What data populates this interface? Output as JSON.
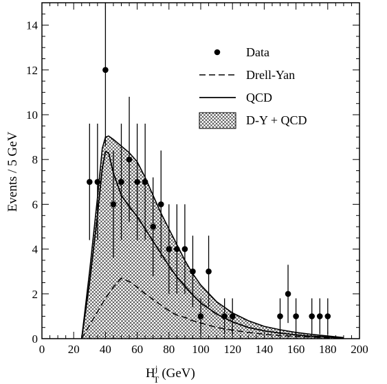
{
  "chart_data": {
    "type": "scatter",
    "xlabel_main": "H",
    "xlabel_sup": "j",
    "xlabel_sub": "T",
    "xlabel_unit": "(GeV)",
    "ylabel": "Events / 5 GeV",
    "xlim": [
      0,
      200
    ],
    "ylim": [
      0,
      15
    ],
    "x_ticks": [
      0,
      20,
      40,
      60,
      80,
      100,
      120,
      140,
      160,
      180,
      200
    ],
    "y_ticks": [
      0,
      2,
      4,
      6,
      8,
      10,
      12,
      14
    ],
    "grid": false,
    "legend_position": "top-right",
    "legend": {
      "data": "Data",
      "drell_yan": "Drell-Yan",
      "qcd": "QCD",
      "dy_qcd": "D-Y + QCD"
    },
    "data_points": {
      "x": [
        30,
        35,
        40,
        45,
        50,
        55,
        60,
        65,
        70,
        75,
        80,
        85,
        90,
        95,
        100,
        105,
        115,
        120,
        150,
        155,
        160,
        170,
        175,
        180
      ],
      "y": [
        7,
        7,
        12,
        6,
        7,
        8,
        7,
        7,
        5,
        6,
        4,
        4,
        4,
        3,
        1,
        3,
        1,
        1,
        1,
        2,
        1,
        1,
        1,
        1
      ],
      "err_low": [
        2.6,
        2.6,
        3.4,
        2.4,
        2.6,
        2.8,
        2.6,
        2.6,
        2.2,
        2.4,
        2.0,
        2.0,
        2.0,
        1.6,
        0.8,
        1.6,
        0.8,
        0.8,
        0.8,
        1.3,
        0.8,
        0.8,
        0.8,
        0.8
      ],
      "err_high": [
        2.6,
        2.6,
        3.4,
        2.4,
        2.6,
        2.8,
        2.6,
        2.6,
        2.2,
        2.4,
        2.0,
        2.0,
        2.0,
        1.6,
        0.8,
        1.6,
        0.8,
        0.8,
        0.8,
        1.3,
        0.8,
        0.8,
        0.8,
        0.8
      ]
    },
    "drell_yan": {
      "x": [
        25,
        30,
        35,
        40,
        45,
        50,
        55,
        60,
        65,
        70,
        75,
        80,
        85,
        90,
        95,
        100,
        110,
        120,
        130,
        140,
        150,
        160,
        170,
        180,
        190
      ],
      "y": [
        0,
        0.6,
        1.2,
        1.8,
        2.3,
        2.7,
        2.55,
        2.3,
        2.0,
        1.75,
        1.5,
        1.25,
        1.05,
        0.95,
        0.8,
        0.7,
        0.5,
        0.38,
        0.28,
        0.2,
        0.14,
        0.1,
        0.07,
        0.04,
        0.02
      ]
    },
    "qcd": {
      "x": [
        25,
        30,
        35,
        38,
        40,
        42,
        45,
        50,
        55,
        60,
        65,
        70,
        75,
        80,
        85,
        90,
        95,
        100,
        110,
        120,
        130,
        140,
        150,
        160,
        170,
        180,
        190
      ],
      "y": [
        0,
        2.5,
        5.5,
        7.6,
        8.35,
        8.3,
        7.4,
        6.4,
        5.9,
        5.45,
        4.9,
        4.35,
        3.8,
        3.25,
        2.75,
        2.35,
        1.95,
        1.6,
        1.1,
        0.75,
        0.5,
        0.35,
        0.25,
        0.17,
        0.11,
        0.07,
        0.03
      ]
    },
    "dy_qcd": {
      "x": [
        25,
        30,
        35,
        38,
        40,
        42,
        45,
        50,
        55,
        60,
        65,
        70,
        75,
        80,
        85,
        90,
        95,
        100,
        110,
        120,
        130,
        140,
        150,
        160,
        170,
        180,
        190
      ],
      "y": [
        0,
        3.0,
        6.3,
        8.5,
        9.0,
        9.05,
        8.9,
        8.6,
        8.3,
        7.9,
        7.2,
        6.4,
        5.6,
        4.9,
        4.2,
        3.5,
        2.9,
        2.4,
        1.65,
        1.15,
        0.8,
        0.55,
        0.4,
        0.28,
        0.19,
        0.12,
        0.05
      ]
    }
  }
}
